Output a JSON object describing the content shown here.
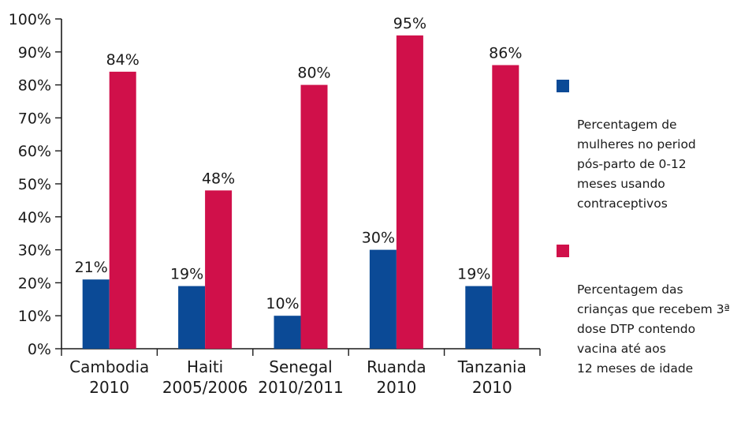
{
  "chart_data": {
    "type": "bar",
    "categories": [
      "Cambodia\n2010",
      "Haiti\n2005/2006",
      "Senegal\n2010/2011",
      "Ruanda\n2010",
      "Tanzania\n2010"
    ],
    "series": [
      {
        "name": "Percentagem de\nmulheres no  period\npós-parto de  0-12\nmeses usando\ncontraceptivos",
        "values": [
          21,
          19,
          10,
          30,
          19
        ],
        "labels": [
          "21%",
          "19%",
          "10%",
          "30%",
          "19%"
        ],
        "color": "#0b4a96"
      },
      {
        "name": "Percentagem das\ncrianças que recebem 3ª\ndose DTP contendo\nvacina até aos\n12 meses  de idade",
        "values": [
          84,
          48,
          80,
          95,
          86
        ],
        "labels": [
          "84%",
          "48%",
          "80%",
          "95%",
          "86%"
        ],
        "color": "#d0104a"
      }
    ],
    "y_ticks": [
      "0%",
      "10%",
      "20%",
      "30%",
      "40%",
      "50%",
      "60%",
      "70%",
      "80%",
      "90%",
      "100%"
    ],
    "ylim": [
      0,
      100
    ],
    "grid": false,
    "legend_position": "right"
  }
}
